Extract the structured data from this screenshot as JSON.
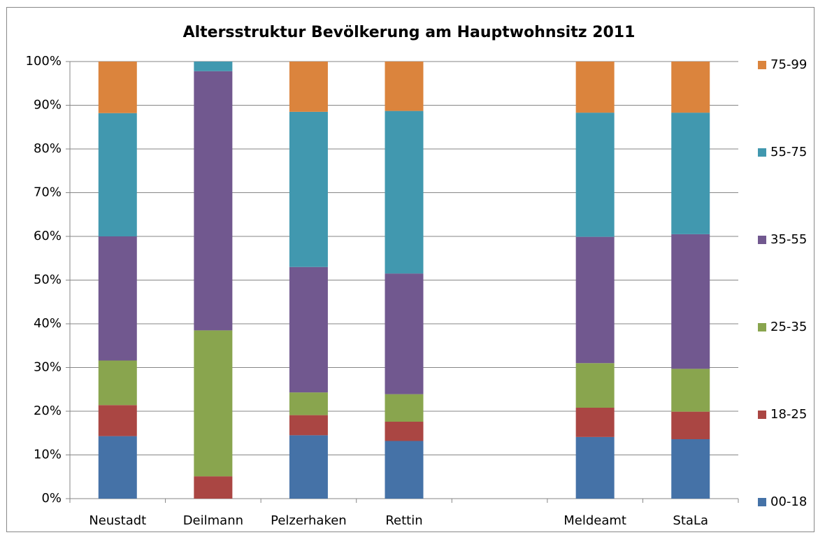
{
  "chart_data": {
    "type": "bar",
    "stacked": true,
    "title": "Altersstruktur Bevölkerung am Hauptwohnsitz 2011",
    "categories": [
      "Neustadt",
      "Deilmann",
      "Pelzerhaken",
      "Rettin",
      null,
      "Meldeamt",
      "StaLa"
    ],
    "series": [
      {
        "name": "00-18",
        "color": "#4572a7",
        "values": [
          14.3,
          0,
          14.5,
          13.2,
          null,
          14.1,
          13.6
        ]
      },
      {
        "name": "18-25",
        "color": "#aa4643",
        "values": [
          7.1,
          5.1,
          4.6,
          4.4,
          null,
          6.7,
          6.3
        ]
      },
      {
        "name": "25-35",
        "color": "#89a54e",
        "values": [
          10.2,
          33.4,
          5.2,
          6.3,
          null,
          10.2,
          9.8
        ]
      },
      {
        "name": "35-55",
        "color": "#71588f",
        "values": [
          28.4,
          59.3,
          28.7,
          27.6,
          null,
          28.9,
          30.8
        ]
      },
      {
        "name": "55-75",
        "color": "#4198af",
        "values": [
          28.2,
          2.2,
          35.5,
          37.2,
          null,
          28.4,
          27.8
        ]
      },
      {
        "name": "75-99",
        "color": "#db843d",
        "values": [
          11.8,
          0,
          11.5,
          11.3,
          null,
          11.7,
          11.7
        ]
      }
    ],
    "ylim": [
      0,
      100
    ],
    "yticks": [
      {
        "value": 0,
        "label": "0%"
      },
      {
        "value": 10,
        "label": "10%"
      },
      {
        "value": 20,
        "label": "20%"
      },
      {
        "value": 30,
        "label": "30%"
      },
      {
        "value": 40,
        "label": "40%"
      },
      {
        "value": 50,
        "label": "50%"
      },
      {
        "value": 60,
        "label": "60%"
      },
      {
        "value": 70,
        "label": "70%"
      },
      {
        "value": 80,
        "label": "80%"
      },
      {
        "value": 90,
        "label": "90%"
      },
      {
        "value": 100,
        "label": "100%"
      }
    ],
    "grid": true,
    "legend": "right"
  }
}
